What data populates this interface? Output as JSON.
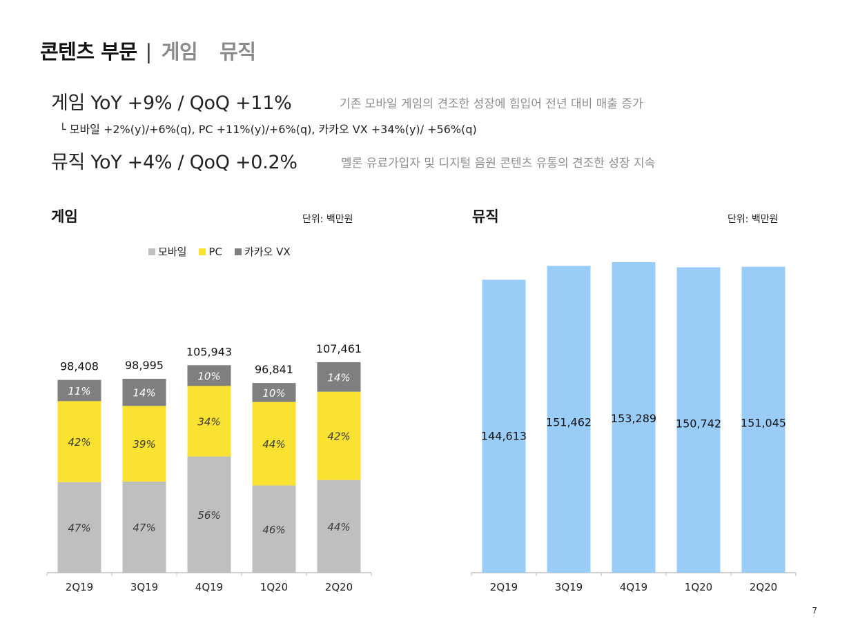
{
  "header": {
    "title": "콘텐츠 부문",
    "separator": "|",
    "tab_game": "게임",
    "tab_music": "뮤직"
  },
  "summary": {
    "game_line": "게임  YoY +9% / QoQ +11%",
    "game_note": "기존 모바일 게임의 견조한 성장에 힘입어 전년 대비 매출 증가",
    "game_sub": "└ 모바일  +2%(y)/+6%(q), PC  +11%(y)/+6%(q), 카카오 VX  +34%(y)/ +56%(q)",
    "music_line": "뮤직  YoY +4% / QoQ +0.2%",
    "music_note": "멜론 유료가입자 및 디지털 음원 콘텐츠 유통의 견조한 성장 지속"
  },
  "page_number": "7",
  "colors": {
    "mobile": "#bfbfbf",
    "pc": "#f9e232",
    "kakao_vx": "#7f7f7f",
    "music": "#99ccf7"
  },
  "chart_data": [
    {
      "type": "bar",
      "stacked": true,
      "title": "게임",
      "unit": "단위: 백만원",
      "categories": [
        "2Q19",
        "3Q19",
        "4Q19",
        "1Q20",
        "2Q20"
      ],
      "totals": [
        98408,
        98995,
        105943,
        96841,
        107461
      ],
      "total_labels": [
        "98,408",
        "98,995",
        "105,943",
        "96,841",
        "107,461"
      ],
      "legend": [
        "모바일",
        "PC",
        "카카오 VX"
      ],
      "legend_position": "top",
      "series": [
        {
          "name": "모바일",
          "share_percent": [
            47,
            47,
            56,
            46,
            44
          ],
          "labels": [
            "47%",
            "47%",
            "56%",
            "46%",
            "44%"
          ]
        },
        {
          "name": "PC",
          "share_percent": [
            42,
            39,
            34,
            44,
            42
          ],
          "labels": [
            "42%",
            "39%",
            "34%",
            "44%",
            "42%"
          ]
        },
        {
          "name": "카카오 VX",
          "share_percent": [
            11,
            14,
            10,
            10,
            14
          ],
          "labels": [
            "11%",
            "14%",
            "10%",
            "10%",
            "14%"
          ]
        }
      ],
      "ylim": [
        0,
        155000
      ],
      "grid": false
    },
    {
      "type": "bar",
      "title": "뮤직",
      "unit": "단위: 백만원",
      "categories": [
        "2Q19",
        "3Q19",
        "4Q19",
        "1Q20",
        "2Q20"
      ],
      "values": [
        144613,
        151462,
        153289,
        150742,
        151045
      ],
      "value_labels": [
        "144,613",
        "151,462",
        "153,289",
        "150,742",
        "151,045"
      ],
      "ylim": [
        0,
        153289
      ],
      "grid": false
    }
  ]
}
